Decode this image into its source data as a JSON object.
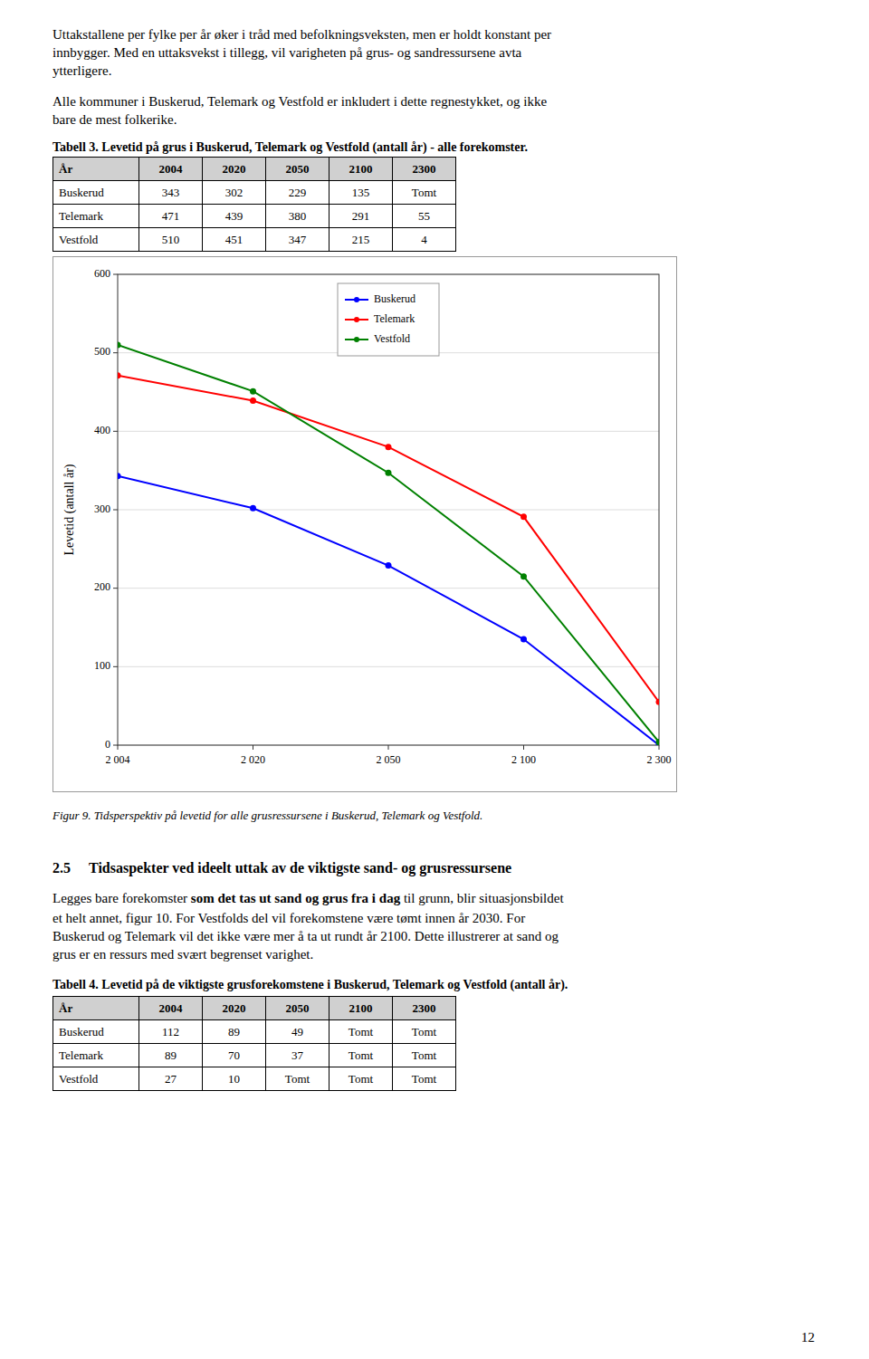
{
  "chart_data": {
    "type": "line",
    "title": "Figur 9.  Tidsperspektiv på levetid for alle grusressursene i Buskerud, Telemark og Vestfold.",
    "y_label": "Levetid (antall år)",
    "categories": [
      "2 004",
      "2 020",
      "2 050",
      "2 100",
      "2 300"
    ],
    "series": [
      {
        "name": "Buskerud",
        "color": "#0000FF",
        "marker": "circle",
        "values": [
          343,
          302,
          229,
          135,
          0
        ]
      },
      {
        "name": "Telemark",
        "color": "#FF0000",
        "marker": "circle",
        "values": [
          471,
          439,
          380,
          291,
          55
        ]
      },
      {
        "name": "Vestfold",
        "color": "#008000",
        "marker": "circle",
        "values": [
          510,
          451,
          347,
          215,
          4
        ]
      }
    ],
    "ylim": [
      0,
      600
    ],
    "yticks": [
      0,
      100,
      200,
      300,
      400,
      500,
      600
    ],
    "grid": true,
    "legend": "upper center"
  },
  "page": {
    "paragraph1": [
      "Uttakstallene per fylke per år øker i tråd med befolkningsveksten, men er holdt konstant per",
      "innbygger. Med en uttaksvekst i tillegg, vil varigheten på grus- og sandressursene avta",
      "ytterligere."
    ],
    "paragraph2": [
      "Alle kommuner i Buskerud, Telemark og Vestfold er inkludert i dette regnestykket, og ikke",
      "bare de mest folkerike."
    ],
    "table3": {
      "title": "Tabell 3.  Levetid på grus i  Buskerud, Telemark og Vestfold (antall år) - alle forekomster.",
      "headers": [
        "År",
        "2004",
        "2020",
        "2050",
        "2100",
        "2300"
      ],
      "rows": [
        [
          "Buskerud",
          "343",
          "302",
          "229",
          "135",
          "Tomt"
        ],
        [
          "Telemark",
          "471",
          "439",
          "380",
          "291",
          "55"
        ],
        [
          "Vestfold",
          "510",
          "451",
          "347",
          "215",
          "4"
        ]
      ]
    },
    "section_number": "2.5",
    "section_title": "Tidsaspekter ved ideelt uttak av de viktigste sand- og grusressursene",
    "paragraph3_first_line": [
      {
        "text": "Legges bare forekomster ",
        "bold": false
      },
      {
        "text": "som det tas ut sand og grus fra i dag",
        "bold": true
      },
      {
        "text": " til grunn, blir situasjonsbildet",
        "bold": false
      }
    ],
    "paragraph3_rest": [
      "et helt annet, figur 10. For Vestfolds del vil forekomstene være tømt innen år 2030. For",
      "Buskerud og Telemark vil det ikke være mer å ta ut rundt år 2100. Dette illustrerer at sand og",
      "grus er en ressurs med svært begrenset varighet."
    ],
    "table4": {
      "title": "Tabell 4.  Levetid på de viktigste grusforekomstene i Buskerud, Telemark og Vestfold (antall år).",
      "headers": [
        "År",
        "2004",
        "2020",
        "2050",
        "2100",
        "2300"
      ],
      "rows": [
        [
          "Buskerud",
          "112",
          "89",
          "49",
          "Tomt",
          "Tomt"
        ],
        [
          "Telemark",
          "89",
          "70",
          "37",
          "Tomt",
          "Tomt"
        ],
        [
          "Vestfold",
          "27",
          "10",
          "Tomt",
          "Tomt",
          "Tomt"
        ]
      ]
    },
    "page_number": "12"
  }
}
